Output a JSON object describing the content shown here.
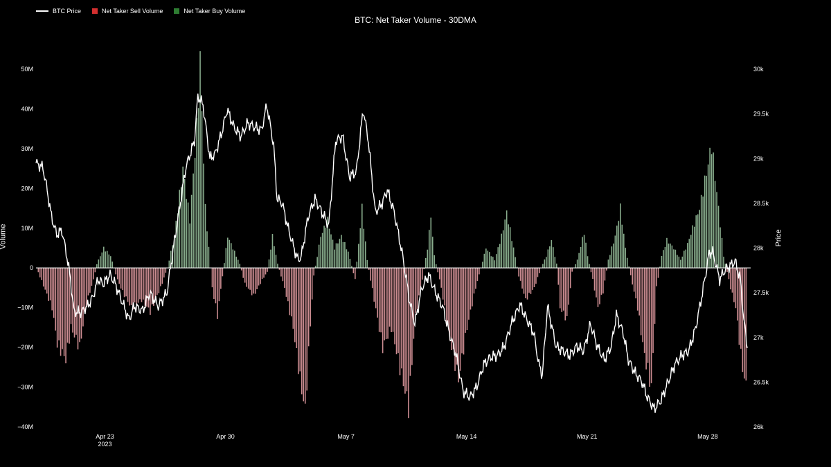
{
  "chart_data": {
    "type": "bar",
    "title": "BTC: Net Taker Volume - 30DMA",
    "legend": {
      "placement": "top-left",
      "items": [
        {
          "name": "BTC Price",
          "color": "#ffffff",
          "kind": "line"
        },
        {
          "name": "Net Taker Sell Volume",
          "color": "#d32f2f",
          "kind": "box"
        },
        {
          "name": "Net Taker Buy Volume",
          "color": "#2e7d32",
          "kind": "box"
        }
      ]
    },
    "left_axis": {
      "title": "Volume",
      "range": [
        -40,
        50
      ],
      "ticks": [
        "50M",
        "40M",
        "30M",
        "20M",
        "10M",
        "0",
        "−10M",
        "−20M",
        "−30M",
        "−40M"
      ],
      "tick_values": [
        50,
        40,
        30,
        20,
        10,
        0,
        -10,
        -20,
        -30,
        -40
      ]
    },
    "right_axis": {
      "title": "Price",
      "range": [
        26000,
        30000
      ],
      "ticks": [
        "30k",
        "29.5k",
        "29k",
        "28.5k",
        "28k",
        "27.5k",
        "27k",
        "26.5k",
        "26k"
      ],
      "tick_values": [
        30000,
        29500,
        29000,
        28500,
        28000,
        27500,
        27000,
        26500,
        26000
      ]
    },
    "x_axis": {
      "range_days": [
        0,
        41.5
      ],
      "ticks": [
        {
          "label": "Apr 23",
          "sub": "2023",
          "day": 4
        },
        {
          "label": "Apr 30",
          "sub": "",
          "day": 11
        },
        {
          "label": "May 7",
          "sub": "",
          "day": 18
        },
        {
          "label": "May 14",
          "sub": "",
          "day": 25
        },
        {
          "label": "May 21",
          "sub": "",
          "day": 32
        },
        {
          "label": "May 28",
          "sub": "",
          "day": 39
        }
      ]
    },
    "grid": false,
    "colors": {
      "sell": "#d8959a",
      "buy": "#8fb593",
      "price": "#ffffff"
    },
    "volume_keypoints": [
      [
        0.0,
        0
      ],
      [
        0.9,
        -10
      ],
      [
        1.2,
        -19
      ],
      [
        1.7,
        -23
      ],
      [
        2.0,
        -15
      ],
      [
        2.5,
        -20
      ],
      [
        2.9,
        -9
      ],
      [
        3.3,
        -3
      ],
      [
        3.5,
        1
      ],
      [
        3.9,
        5
      ],
      [
        4.3,
        3
      ],
      [
        4.7,
        -3
      ],
      [
        5.0,
        -6
      ],
      [
        5.5,
        -10
      ],
      [
        6.1,
        -8
      ],
      [
        6.6,
        -11
      ],
      [
        7.2,
        -5
      ],
      [
        7.6,
        0
      ],
      [
        8.0,
        8
      ],
      [
        8.5,
        25
      ],
      [
        8.9,
        12
      ],
      [
        9.3,
        35
      ],
      [
        9.5,
        52
      ],
      [
        9.8,
        15
      ],
      [
        10.2,
        -5
      ],
      [
        10.5,
        -12
      ],
      [
        10.8,
        -2
      ],
      [
        11.1,
        8
      ],
      [
        11.4,
        5
      ],
      [
        11.8,
        1
      ],
      [
        12.1,
        -4
      ],
      [
        12.6,
        -7
      ],
      [
        13.1,
        -3
      ],
      [
        13.4,
        -1
      ],
      [
        13.7,
        8
      ],
      [
        14.0,
        1
      ],
      [
        14.4,
        -5
      ],
      [
        14.9,
        -15
      ],
      [
        15.3,
        -28
      ],
      [
        15.6,
        -36
      ],
      [
        15.9,
        -14
      ],
      [
        16.1,
        -2
      ],
      [
        16.5,
        8
      ],
      [
        16.9,
        12
      ],
      [
        17.3,
        5
      ],
      [
        17.7,
        8
      ],
      [
        18.1,
        4
      ],
      [
        18.5,
        -3
      ],
      [
        18.9,
        15
      ],
      [
        19.2,
        2
      ],
      [
        19.6,
        -8
      ],
      [
        20.1,
        -20
      ],
      [
        20.6,
        -15
      ],
      [
        21.0,
        -23
      ],
      [
        21.6,
        -35
      ],
      [
        22.0,
        -12
      ],
      [
        22.4,
        -3
      ],
      [
        22.7,
        5
      ],
      [
        22.9,
        13
      ],
      [
        23.1,
        3
      ],
      [
        23.5,
        -5
      ],
      [
        24.0,
        -18
      ],
      [
        24.5,
        -28
      ],
      [
        25.0,
        -15
      ],
      [
        25.5,
        -5
      ],
      [
        25.8,
        0
      ],
      [
        26.1,
        5
      ],
      [
        26.6,
        2
      ],
      [
        27.0,
        8
      ],
      [
        27.3,
        14
      ],
      [
        27.7,
        5
      ],
      [
        28.0,
        -2
      ],
      [
        28.4,
        -8
      ],
      [
        28.9,
        -5
      ],
      [
        29.3,
        0
      ],
      [
        29.6,
        3
      ],
      [
        29.9,
        7
      ],
      [
        30.2,
        1
      ],
      [
        30.4,
        -10
      ],
      [
        30.8,
        -13
      ],
      [
        31.1,
        -1
      ],
      [
        31.4,
        2
      ],
      [
        31.8,
        9
      ],
      [
        32.0,
        3
      ],
      [
        32.3,
        -3
      ],
      [
        32.6,
        -10
      ],
      [
        32.9,
        -6
      ],
      [
        33.2,
        2
      ],
      [
        33.6,
        8
      ],
      [
        33.9,
        15
      ],
      [
        34.2,
        5
      ],
      [
        34.5,
        -2
      ],
      [
        34.9,
        -10
      ],
      [
        35.3,
        -22
      ],
      [
        35.7,
        -30
      ],
      [
        36.0,
        -5
      ],
      [
        36.3,
        3
      ],
      [
        36.6,
        7
      ],
      [
        37.0,
        5
      ],
      [
        37.4,
        2
      ],
      [
        37.8,
        6
      ],
      [
        38.1,
        10
      ],
      [
        38.5,
        15
      ],
      [
        38.9,
        24
      ],
      [
        39.2,
        31
      ],
      [
        39.6,
        15
      ],
      [
        39.9,
        3
      ],
      [
        40.3,
        -5
      ],
      [
        40.6,
        -10
      ],
      [
        40.9,
        -22
      ],
      [
        41.1,
        -28
      ],
      [
        41.3,
        -31
      ]
    ],
    "price_keypoints": [
      [
        0.0,
        28950
      ],
      [
        0.4,
        28900
      ],
      [
        0.6,
        28700
      ],
      [
        0.9,
        28350
      ],
      [
        1.2,
        28150
      ],
      [
        1.5,
        28200
      ],
      [
        1.8,
        27900
      ],
      [
        2.0,
        27650
      ],
      [
        2.2,
        27290
      ],
      [
        2.6,
        27280
      ],
      [
        3.0,
        27350
      ],
      [
        3.3,
        27450
      ],
      [
        3.6,
        27650
      ],
      [
        3.9,
        27600
      ],
      [
        4.3,
        27700
      ],
      [
        4.6,
        27600
      ],
      [
        5.0,
        27400
      ],
      [
        5.4,
        27200
      ],
      [
        5.7,
        27350
      ],
      [
        6.2,
        27300
      ],
      [
        6.6,
        27500
      ],
      [
        7.1,
        27350
      ],
      [
        7.6,
        27500
      ],
      [
        7.9,
        27900
      ],
      [
        8.3,
        28400
      ],
      [
        8.7,
        28900
      ],
      [
        9.2,
        29200
      ],
      [
        9.4,
        29700
      ],
      [
        9.7,
        29600
      ],
      [
        10.1,
        29000
      ],
      [
        10.4,
        29050
      ],
      [
        10.8,
        29300
      ],
      [
        11.1,
        29550
      ],
      [
        11.5,
        29350
      ],
      [
        11.9,
        29250
      ],
      [
        12.3,
        29400
      ],
      [
        12.7,
        29350
      ],
      [
        13.1,
        29320
      ],
      [
        13.4,
        29600
      ],
      [
        13.8,
        29150
      ],
      [
        14.0,
        28550
      ],
      [
        14.3,
        28500
      ],
      [
        14.6,
        28250
      ],
      [
        14.9,
        28050
      ],
      [
        15.2,
        27870
      ],
      [
        15.4,
        27900
      ],
      [
        15.8,
        28350
      ],
      [
        16.2,
        28550
      ],
      [
        16.6,
        28400
      ],
      [
        17.0,
        28250
      ],
      [
        17.4,
        29200
      ],
      [
        17.8,
        29250
      ],
      [
        18.2,
        28800
      ],
      [
        18.6,
        28850
      ],
      [
        19.0,
        29550
      ],
      [
        19.3,
        29200
      ],
      [
        19.7,
        28400
      ],
      [
        20.1,
        28500
      ],
      [
        20.4,
        28650
      ],
      [
        20.8,
        28400
      ],
      [
        21.3,
        27900
      ],
      [
        21.7,
        27400
      ],
      [
        22.0,
        27150
      ],
      [
        22.4,
        27550
      ],
      [
        22.8,
        27700
      ],
      [
        23.2,
        27500
      ],
      [
        23.6,
        27350
      ],
      [
        24.0,
        27050
      ],
      [
        24.4,
        26800
      ],
      [
        24.8,
        26400
      ],
      [
        25.2,
        26330
      ],
      [
        25.6,
        26450
      ],
      [
        26.0,
        26700
      ],
      [
        26.4,
        26780
      ],
      [
        26.8,
        26800
      ],
      [
        27.2,
        26900
      ],
      [
        27.6,
        27150
      ],
      [
        28.1,
        27370
      ],
      [
        28.5,
        27200
      ],
      [
        28.9,
        27050
      ],
      [
        29.2,
        26700
      ],
      [
        29.4,
        26580
      ],
      [
        29.7,
        27350
      ],
      [
        30.2,
        26900
      ],
      [
        30.6,
        26850
      ],
      [
        31.0,
        26800
      ],
      [
        31.4,
        26900
      ],
      [
        31.8,
        26850
      ],
      [
        32.2,
        27150
      ],
      [
        32.6,
        26900
      ],
      [
        33.0,
        26750
      ],
      [
        33.4,
        26900
      ],
      [
        33.7,
        27250
      ],
      [
        34.1,
        27050
      ],
      [
        34.4,
        26750
      ],
      [
        34.8,
        26600
      ],
      [
        35.2,
        26500
      ],
      [
        35.5,
        26330
      ],
      [
        35.9,
        26200
      ],
      [
        36.3,
        26300
      ],
      [
        36.7,
        26500
      ],
      [
        37.1,
        26700
      ],
      [
        37.5,
        26800
      ],
      [
        37.9,
        26850
      ],
      [
        38.3,
        27100
      ],
      [
        38.7,
        27500
      ],
      [
        39.1,
        27950
      ],
      [
        39.3,
        27950
      ],
      [
        39.5,
        27800
      ],
      [
        39.7,
        27650
      ],
      [
        40.0,
        27750
      ],
      [
        40.3,
        27800
      ],
      [
        40.6,
        27850
      ],
      [
        40.9,
        27650
      ],
      [
        41.1,
        27200
      ],
      [
        41.3,
        26900
      ]
    ]
  }
}
